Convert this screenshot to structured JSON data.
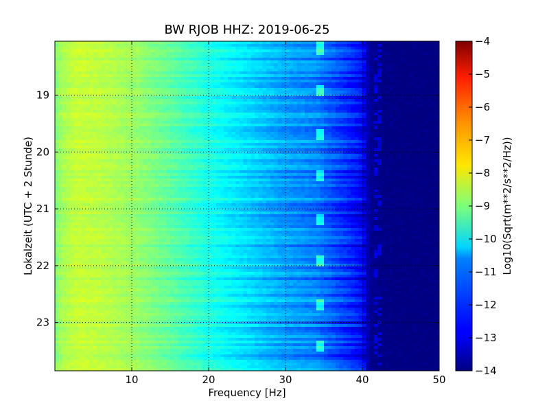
{
  "chart_data": {
    "type": "heatmap",
    "title": "BW RJOB HHZ: 2019-06-25",
    "xlabel": "Frequency [Hz]",
    "ylabel": "Lokalzeit (UTC + 2 Stunde)",
    "xlim": [
      0,
      50
    ],
    "ylim": [
      18.05,
      23.85
    ],
    "y_inverted": true,
    "x_ticks": [
      "10",
      "20",
      "30",
      "40",
      "50"
    ],
    "x_tick_values": [
      10,
      20,
      30,
      40,
      50
    ],
    "y_ticks": [
      "19",
      "20",
      "21",
      "22",
      "23"
    ],
    "y_tick_values": [
      19,
      20,
      21,
      22,
      23
    ],
    "grid": true,
    "colorbar": {
      "label": "Log10(Sqrt(m**2/s**2/Hz))",
      "range": [
        -14,
        -4
      ],
      "ticks": [
        "−4",
        "−5",
        "−6",
        "−7",
        "−8",
        "−9",
        "−10",
        "−11",
        "−12",
        "−13",
        "−14"
      ],
      "tick_values": [
        -4,
        -5,
        -6,
        -7,
        -8,
        -9,
        -10,
        -11,
        -12,
        -13,
        -14
      ],
      "colormap": "jet"
    },
    "approx_spectrum": {
      "frequency_hz": [
        0,
        1,
        3,
        6,
        10,
        15,
        20,
        25,
        30,
        34,
        36,
        38,
        40,
        41,
        42,
        45,
        50
      ],
      "log10_amplitude": [
        -9.0,
        -8.6,
        -8.3,
        -8.4,
        -8.7,
        -9.3,
        -10.0,
        -10.6,
        -11.2,
        -11.5,
        -11.9,
        -12.3,
        -12.8,
        -13.8,
        -13.9,
        -14.0,
        -14.0
      ]
    },
    "features": {
      "line_frequency_hz": 34.2,
      "line_frequency_hz_2": 42.0
    }
  }
}
